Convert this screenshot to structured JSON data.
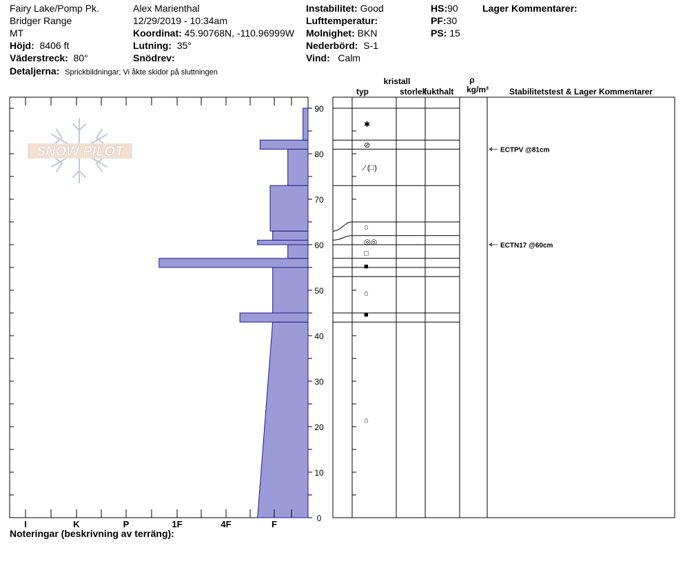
{
  "header": {
    "location": "Fairy Lake/Pomp Pk.",
    "range": "Bridger Range",
    "state": "MT",
    "elevation_label": "Höjd:",
    "elevation_value": "8406 ft",
    "aspect_label": "Väderstreck:",
    "aspect_value": "80°",
    "details_label": "Detaljerna:",
    "details_value": "Sprickbildningar;  Vi åkte skidor på sluttningen",
    "observer": "Alex Marienthal",
    "datetime": "12/29/2019 - 10:34am",
    "coord_label": "Koordinat:",
    "coord_value": "45.90768N, -110.96999W",
    "slope_label": "Lutning:",
    "slope_value": "35°",
    "drift_label": "Snödrev:",
    "instability_label": "Instabilitet:",
    "instability_value": "Good",
    "airtemp_label": "Lufttemperatur:",
    "sky_label": "Molnighet:",
    "sky_value": "BKN",
    "precip_label": "Nederbörd:",
    "precip_value": "S-1",
    "wind_label": "Vind:",
    "wind_value": "Calm",
    "hs_label": "HS:",
    "hs_value": "90",
    "pf_label": "PF:",
    "pf_value": "30",
    "ps_label": "PS:",
    "ps_value": "15",
    "layer_comments_label": "Lager Kommentarer:"
  },
  "logo_text": "SNOW PILOT",
  "notes_label": "Noteringar (beskrivning av terräng):",
  "table_headers": {
    "type": "typ",
    "crystal": "kristall",
    "size": "storlek",
    "moisture": "fukthalt",
    "rho": "ρ",
    "density_unit": "kg/m³",
    "stability": "Stabilitetstest & Lager Kommentarer"
  },
  "colors": {
    "fill": "#9b9bd7",
    "stroke": "#1c1c8c"
  },
  "chart_data": {
    "type": "area",
    "ylim": [
      0,
      90
    ],
    "yticks": [
      0,
      10,
      20,
      30,
      40,
      50,
      60,
      70,
      80,
      90
    ],
    "hardness_scale": [
      "I",
      "K",
      "P",
      "1F",
      "4F",
      "F"
    ],
    "xlim": [
      -3.3,
      0
    ],
    "profile": [
      {
        "bottom": 0,
        "top": 43,
        "hardness_bottom": -1,
        "hardness_top": -0.7
      },
      {
        "bottom": 43,
        "top": 45,
        "hardness": -1.35
      },
      {
        "bottom": 45,
        "top": 55,
        "hardness": -0.7
      },
      {
        "bottom": 55,
        "top": 57,
        "hardness": -2.95
      },
      {
        "bottom": 57,
        "top": 60,
        "hardness": -0.4
      },
      {
        "bottom": 60,
        "top": 61,
        "hardness": -1.0
      },
      {
        "bottom": 61,
        "top": 63,
        "hardness": -0.7
      },
      {
        "bottom": 63,
        "top": 73,
        "hardness": -0.75
      },
      {
        "bottom": 73,
        "top": 81,
        "hardness": -0.4
      },
      {
        "bottom": 81,
        "top": 83,
        "hardness": -0.95
      },
      {
        "bottom": 83,
        "top": 90,
        "hardness": -0.1
      }
    ],
    "layer_boundaries": [
      90,
      83,
      81,
      73,
      65,
      62,
      60,
      57,
      55,
      53,
      45,
      43
    ],
    "table_boundaries_left": [
      90,
      83,
      81,
      73,
      63,
      61,
      60,
      57,
      55,
      53,
      45,
      43
    ],
    "grain_types": [
      {
        "height": 86.5,
        "symbol": "✱"
      },
      {
        "height": 82,
        "symbol": "⊘"
      },
      {
        "height": 77,
        "symbol": "⁄ (□)"
      },
      {
        "height": 64,
        "symbol": "⌂"
      },
      {
        "height": 60.7,
        "symbol": "◎◎"
      },
      {
        "height": 58.2,
        "symbol": "□"
      },
      {
        "height": 55.3,
        "symbol": "■"
      },
      {
        "height": 49.5,
        "symbol": "⌂"
      },
      {
        "height": 44.7,
        "symbol": "■"
      },
      {
        "height": 21.5,
        "symbol": "⌂"
      }
    ],
    "stability_tests": [
      {
        "height": 81,
        "label": "ECTPV @81cm"
      },
      {
        "height": 60,
        "label": "ECTN17 @60cm"
      }
    ]
  }
}
